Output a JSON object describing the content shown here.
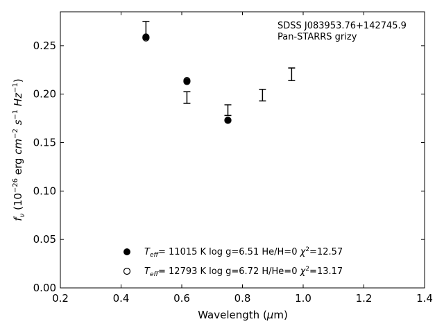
{
  "chart_data": {
    "type": "scatter",
    "title": "",
    "xlabel": "Wavelength (μm)",
    "ylabel": "fν (10⁻²⁶ erg cm⁻² s⁻¹ Hz⁻¹)",
    "xlim": [
      0.2,
      1.4
    ],
    "ylim": [
      0.0,
      0.285
    ],
    "xticks": [
      0.2,
      0.4,
      0.6,
      0.8,
      1.0,
      1.2,
      1.4
    ],
    "xtick_labels": [
      "0.2",
      "0.4",
      "0.6",
      "0.8",
      "1.0",
      "1.2",
      "1.4"
    ],
    "yticks": [
      0.0,
      0.05,
      0.1,
      0.15,
      0.2,
      0.25
    ],
    "ytick_labels": [
      "0.00",
      "0.05",
      "0.10",
      "0.15",
      "0.20",
      "0.25"
    ],
    "grid": false,
    "annotation_lines": [
      "SDSS J083953.76+142745.9",
      "Pan-STARRS grizy"
    ],
    "observed": {
      "x": [
        0.482,
        0.617,
        0.752,
        0.866,
        0.962
      ],
      "y": [
        0.2665,
        0.1965,
        0.1835,
        0.199,
        0.2205
      ],
      "yerr": [
        0.0085,
        0.006,
        0.0055,
        0.006,
        0.0065
      ]
    },
    "series": [
      {
        "name": "Teff= 11015 K  log g=6.51  He/H=0  χ²=12.57",
        "marker": "filled-circle",
        "x": [
          0.482,
          0.617,
          0.752
        ],
        "y": [
          0.259,
          0.213,
          0.173
        ]
      },
      {
        "name": "Teff= 12793 K  log g=6.72  H/He=0  χ²=13.17",
        "marker": "open-circle",
        "x": [
          0.482,
          0.617,
          0.752
        ],
        "y": [
          0.258,
          0.214,
          0.173
        ]
      }
    ],
    "legend": {
      "position": "lower-center",
      "entries": [
        {
          "teff": "11015",
          "logg": "6.51",
          "comp": "He/H=0",
          "chi2": "12.57"
        },
        {
          "teff": "12793",
          "logg": "6.72",
          "comp": "H/He=0",
          "chi2": "13.17"
        }
      ]
    },
    "colors": {
      "marker": "#000000",
      "axes": "#000000"
    }
  }
}
